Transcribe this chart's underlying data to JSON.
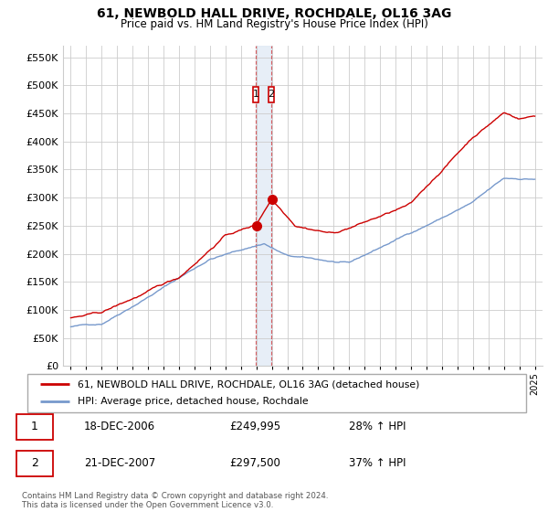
{
  "title": "61, NEWBOLD HALL DRIVE, ROCHDALE, OL16 3AG",
  "subtitle": "Price paid vs. HM Land Registry's House Price Index (HPI)",
  "sale_dates": [
    2006.96,
    2007.97
  ],
  "sale_prices": [
    249995,
    297500
  ],
  "sale_labels": [
    "1",
    "2"
  ],
  "legend_entries": [
    "61, NEWBOLD HALL DRIVE, ROCHDALE, OL16 3AG (detached house)",
    "HPI: Average price, detached house, Rochdale"
  ],
  "table_rows": [
    [
      "1",
      "18-DEC-2006",
      "£249,995",
      "28% ↑ HPI"
    ],
    [
      "2",
      "21-DEC-2007",
      "£297,500",
      "37% ↑ HPI"
    ]
  ],
  "footer": "Contains HM Land Registry data © Crown copyright and database right 2024.\nThis data is licensed under the Open Government Licence v3.0.",
  "property_color": "#cc0000",
  "hpi_color": "#7799cc",
  "shaded_color": "#dde8f5",
  "ylim": [
    0,
    570000
  ],
  "yticks": [
    0,
    50000,
    100000,
    150000,
    200000,
    250000,
    300000,
    350000,
    400000,
    450000,
    500000,
    550000
  ],
  "xlim_start": 1994.5,
  "xlim_end": 2025.5
}
